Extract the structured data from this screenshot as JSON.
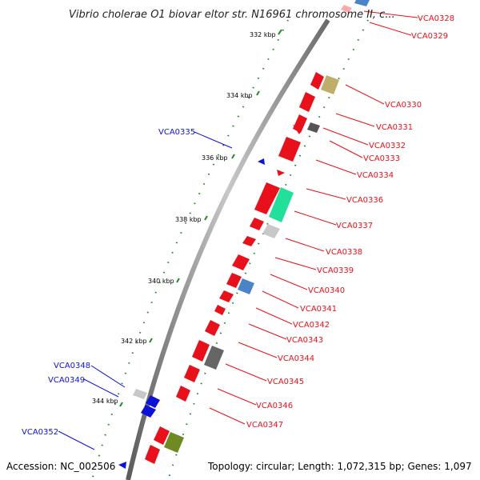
{
  "title": "Vibrio cholerae O1 biovar eltor str. N16961 chromosome II, c...",
  "accession": "Accession: NC_002506",
  "topology": "Topology: circular; Length: 1,072,315 bp; Genes: 1,097",
  "ticks": [
    "332 kbp",
    "334 kbp",
    "336 kbp",
    "338 kbp",
    "340 kbp",
    "342 kbp",
    "344 kbp"
  ],
  "genes_forward": [
    "VCA0328",
    "VCA0329",
    "VCA0330",
    "VCA0331",
    "VCA0332",
    "VCA0333",
    "VCA0334",
    "VCA0336",
    "VCA0337",
    "VCA0338",
    "VCA0339",
    "VCA0340",
    "VCA0341",
    "VCA0342",
    "VCA0343",
    "VCA0344",
    "VCA0345",
    "VCA0346",
    "VCA0347"
  ],
  "genes_reverse": [
    "VCA0335",
    "VCA0348",
    "VCA0349",
    "VCA0352"
  ],
  "colors": {
    "forward": "#e8101a",
    "reverse": "#0d12d8",
    "tick": "#1f8a1f",
    "backbone": "#888888"
  }
}
